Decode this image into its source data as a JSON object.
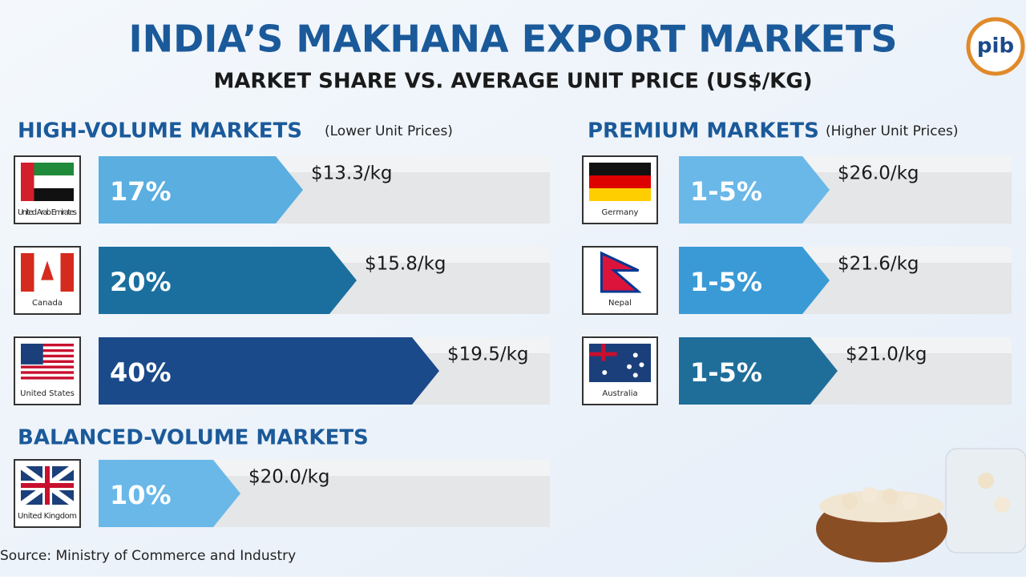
{
  "header": {
    "title": "INDIA’S MAKHANA EXPORT MARKETS",
    "subtitle": "MARKET SHARE VS. AVERAGE UNIT PRICE (US$/KG)"
  },
  "high_volume": {
    "heading": "HIGH-VOLUME MARKETS",
    "note": "(Lower Unit Prices)",
    "markets": [
      {
        "country": "United Arab Emirates",
        "share": "17%",
        "price": "$13.3/kg"
      },
      {
        "country": "Canada",
        "share": "20%",
        "price": "$15.8/kg"
      },
      {
        "country": "United States",
        "share": "40%",
        "price": "$19.5/kg"
      }
    ]
  },
  "balanced": {
    "heading": "BALANCED-VOLUME MARKETS",
    "markets": [
      {
        "country": "United Kingdom",
        "share": "10%",
        "price": "$20.0/kg"
      }
    ]
  },
  "premium": {
    "heading": "PREMIUM MARKETS",
    "note": "(Higher Unit Prices)",
    "markets": [
      {
        "country": "Germany",
        "share": "1-5%",
        "price": "$26.0/kg"
      },
      {
        "country": "Nepal",
        "share": "1-5%",
        "price": "$21.6/kg"
      },
      {
        "country": "Australia",
        "share": "1-5%",
        "price": "$21.0/kg"
      }
    ]
  },
  "source": "Source: Ministry of Commerce and Industry"
}
